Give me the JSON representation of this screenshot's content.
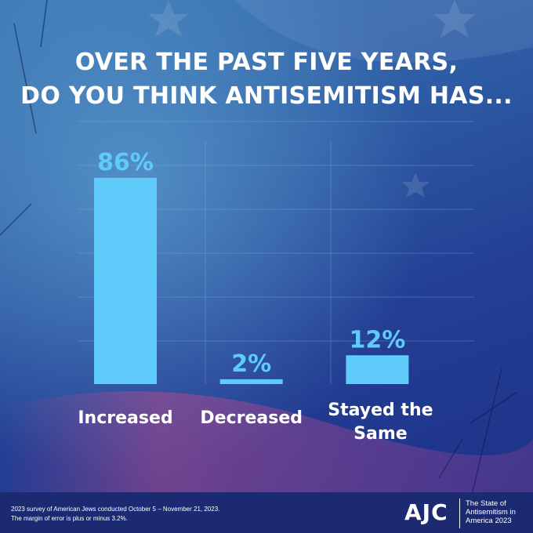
{
  "title": {
    "line1": "OVER THE PAST FIVE YEARS,",
    "line2": "DO YOU THINK ANTISEMITISM HAS..."
  },
  "chart_data": {
    "type": "bar",
    "categories": [
      "Increased",
      "Decreased",
      "Stayed the Same"
    ],
    "category_lines": [
      [
        "Increased"
      ],
      [
        "Decreased"
      ],
      [
        "Stayed the",
        "Same"
      ]
    ],
    "values": [
      86,
      2,
      12
    ],
    "value_labels": [
      "86%",
      "2%",
      "12%"
    ],
    "ylim": [
      0,
      100
    ],
    "grid": true,
    "bar_color": "#5ecbfb",
    "value_label_color": "#5ecbfb",
    "category_label_color": "#ffffff"
  },
  "footer": {
    "note_line1": "2023 survey of American Jews conducted October 5 – November 21, 2023.",
    "note_line2": "The margin of error is plus or minus 3.2%.",
    "logo": "AJC",
    "report_line1": "The State of",
    "report_line2": "Antisemitism in",
    "report_line3": "America 2023"
  }
}
